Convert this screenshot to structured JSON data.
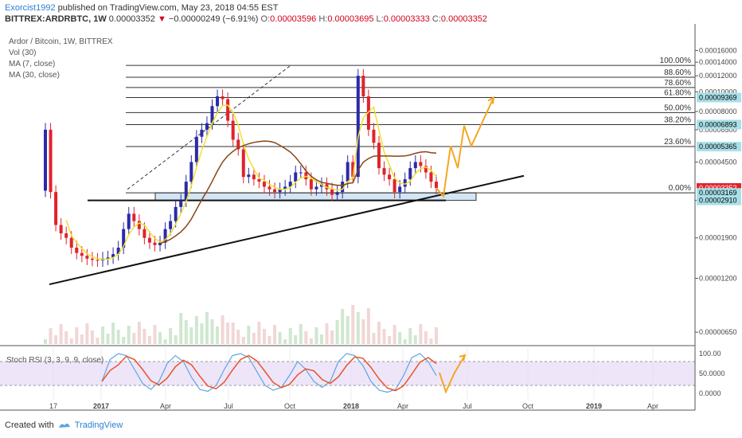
{
  "header": {
    "user": "Exorcist1992",
    "publish_text": "published on TradingView.com, May 23, 2018 04:55 EST",
    "symbol_line": "BITTREX:ARDRBTC, 1W",
    "last_price": "0.00003352",
    "change_text": "−0.00000249 (−6.91%)",
    "ohlc": [
      {
        "key": "O:",
        "value": "0.00003596"
      },
      {
        "key": "H:",
        "value": "0.00003695"
      },
      {
        "key": "L:",
        "value": "0.00003333"
      },
      {
        "key": "C:",
        "value": "0.00003352"
      }
    ]
  },
  "legend": {
    "title": "Ardor / Bitcoin, 1W, BITTREX",
    "vol": "Vol (30)",
    "ma7": "MA (7, close)",
    "ma30": "MA (30, close)"
  },
  "stoch_label": "Stoch RSI (3, 3, 9, 9, close)",
  "footer": {
    "created_with": "Created with",
    "brand": "TradingView"
  },
  "colors": {
    "up": "#2a2aa8",
    "down": "#e0232c",
    "ma7": "#f0e130",
    "ma30": "#8b4513",
    "fib": "#333333",
    "zone": "#b8d4ec",
    "forecast": "#f5a623",
    "k_line": "#e8542a",
    "d_line": "#5ba6e0",
    "stoch_band": "#e3d4f5",
    "price_tag": "#e0232c",
    "fib_tag": "#a8e0e8"
  },
  "chart_data": {
    "type": "candlestick",
    "x_labels": [
      "17",
      "2017",
      "Apr",
      "Jul",
      "Oct",
      "2018",
      "Apr",
      "Jul",
      "Oct",
      "2019",
      "Apr"
    ],
    "y_ticks": [
      "0.00016000",
      "0.00014000",
      "0.00012000",
      "0.00010000",
      "0.00008000",
      "0.00006500",
      "0.00004500",
      "0.00002910",
      "0.00001900",
      "0.00001200",
      "0.00000650"
    ],
    "fib_levels": [
      {
        "label": "100.00%",
        "price": 0.000135
      },
      {
        "label": "88.60%",
        "price": 0.000118
      },
      {
        "label": "78.60%",
        "price": 0.000105
      },
      {
        "label": "61.80%",
        "price": 9.37e-05
      },
      {
        "label": "50.00%",
        "price": 7.9e-05
      },
      {
        "label": "38.20%",
        "price": 6.89e-05
      },
      {
        "label": "23.60%",
        "price": 5.37e-05
      },
      {
        "label": "0.00%",
        "price": 3.17e-05
      }
    ],
    "price_tags": [
      {
        "value": "0.00009369",
        "kind": "fib"
      },
      {
        "value": "0.00006893",
        "kind": "fib"
      },
      {
        "value": "0.00005365",
        "kind": "fib"
      },
      {
        "value": "0.00003352",
        "kind": "last"
      },
      {
        "value": "0.00003169",
        "kind": "fib"
      },
      {
        "value": "0.00002910",
        "kind": "fib"
      }
    ],
    "stoch_ticks": [
      "100.00",
      "50.0000",
      "0.0000"
    ],
    "closes": [
      6.5e-05,
      3.2e-05,
      2.2e-05,
      2e-05,
      1.9e-05,
      1.7e-05,
      1.6e-05,
      1.55e-05,
      1.5e-05,
      1.48e-05,
      1.47e-05,
      1.5e-05,
      1.52e-05,
      1.58e-05,
      1.7e-05,
      2.1e-05,
      2.5e-05,
      2.3e-05,
      2.1e-05,
      1.9e-05,
      1.8e-05,
      1.75e-05,
      1.8e-05,
      2.1e-05,
      2.3e-05,
      2.7e-05,
      2.9e-05,
      3.6e-05,
      4.5e-05,
      6e-05,
      6.5e-05,
      7e-05,
      8.5e-05,
      9.5e-05,
      9.2e-05,
      7.2e-05,
      5.8e-05,
      5.2e-05,
      3.8e-05,
      3.9e-05,
      3.7e-05,
      3.6e-05,
      3.4e-05,
      3.3e-05,
      3.2e-05,
      3.3e-05,
      3.4e-05,
      3.6e-05,
      4e-05,
      4e-05,
      3.7e-05,
      3.3e-05,
      3.4e-05,
      3.5e-05,
      3.3e-05,
      3.1e-05,
      3.2e-05,
      3.6e-05,
      4.5e-05,
      3.8e-05,
      0.00012,
      9.5e-05,
      6.5e-05,
      5.6e-05,
      4.2e-05,
      3.9e-05,
      3.7e-05,
      3.2e-05,
      3.4e-05,
      3.7e-05,
      4.2e-05,
      4.5e-05,
      4.3e-05,
      4e-05,
      3.6e-05,
      3.35e-05
    ]
  }
}
